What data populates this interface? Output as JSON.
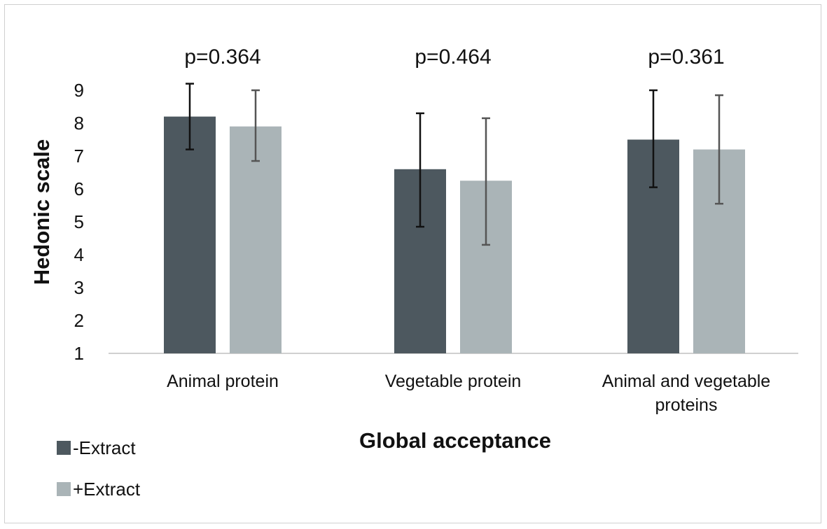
{
  "chart_data": {
    "type": "bar",
    "title": "",
    "xlabel": "Global acceptance",
    "ylabel": "Hedonic scale",
    "ylim": [
      1,
      9
    ],
    "yticks": [
      1,
      2,
      3,
      4,
      5,
      6,
      7,
      8,
      9
    ],
    "grid": false,
    "legend_position": "bottom-left",
    "categories": [
      [
        "Animal protein"
      ],
      [
        "Vegetable protein"
      ],
      [
        "Animal and vegetable",
        "proteins"
      ]
    ],
    "annotations": [
      "p=0.364",
      "p=0.464",
      "p=0.361"
    ],
    "series": [
      {
        "name": "-Extract",
        "color": "#4d585f",
        "values": [
          8.2,
          6.6,
          7.5
        ],
        "err_low": [
          7.2,
          4.85,
          6.05
        ],
        "err_high": [
          9.2,
          8.3,
          9.0
        ]
      },
      {
        "name": "+Extract",
        "color": "#aab4b7",
        "values": [
          7.9,
          6.25,
          7.2
        ],
        "err_low": [
          6.85,
          4.3,
          5.55
        ],
        "err_high": [
          9.0,
          8.15,
          8.85
        ]
      }
    ]
  }
}
